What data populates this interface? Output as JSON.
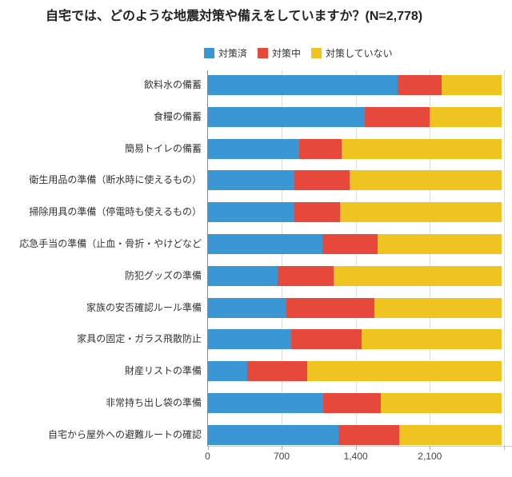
{
  "title": "自宅では、どのような地震対策や備えをしていますか？(N=2,778)",
  "legend": {
    "items": [
      {
        "label": "対策済",
        "color": "#3B97D3"
      },
      {
        "label": "対策中",
        "color": "#E6493C"
      },
      {
        "label": "対策していない",
        "color": "#EFC320"
      }
    ]
  },
  "x_axis": {
    "tick_labels": [
      "0",
      "700",
      "1,400",
      "2,100"
    ],
    "tick_values": [
      0,
      700,
      1400,
      2100
    ],
    "grid_values": [
      700,
      1400,
      2100,
      2800
    ],
    "min": 0,
    "max": 2800
  },
  "colors": {
    "done": "#3B97D3",
    "in_progress": "#E6493C",
    "not_done": "#EFC320",
    "gridline": "#dddddd",
    "axis": "#888888",
    "text": "#333333"
  },
  "chart_data": {
    "type": "bar",
    "stacked": true,
    "orientation": "horizontal",
    "title": "自宅では、どのような地震対策や備えをしていますか？(N=2,778)",
    "n_total": 2778,
    "xlim": [
      0,
      2800
    ],
    "grid": true,
    "legend_position": "top",
    "categories": [
      "飲料水の備蓄",
      "食糧の備蓄",
      "簡易トイレの備蓄",
      "衛生用品の準備（断水時に使えるもの）",
      "掃除用具の準備（停電時も使えるもの）",
      "応急手当の準備（止血・骨折・やけどなど",
      "防犯グッズの準備",
      "家族の安否確認ルール準備",
      "家具の固定・ガラス飛散防止",
      "財産リストの準備",
      "非常持ち出し袋の準備",
      "自宅から屋外への避難ルートの確認"
    ],
    "series": [
      {
        "name": "対策済",
        "color": "#3B97D3",
        "values": [
          1795,
          1485,
          860,
          815,
          815,
          1080,
          655,
          740,
          785,
          370,
          1085,
          1230
        ]
      },
      {
        "name": "対策中",
        "color": "#E6493C",
        "values": [
          415,
          610,
          400,
          520,
          430,
          520,
          530,
          835,
          670,
          565,
          550,
          580
        ]
      },
      {
        "name": "対策していない",
        "color": "#EFC320",
        "values": [
          568,
          683,
          1518,
          1443,
          1533,
          1178,
          1593,
          1203,
          1323,
          1843,
          1143,
          968
        ]
      }
    ]
  }
}
